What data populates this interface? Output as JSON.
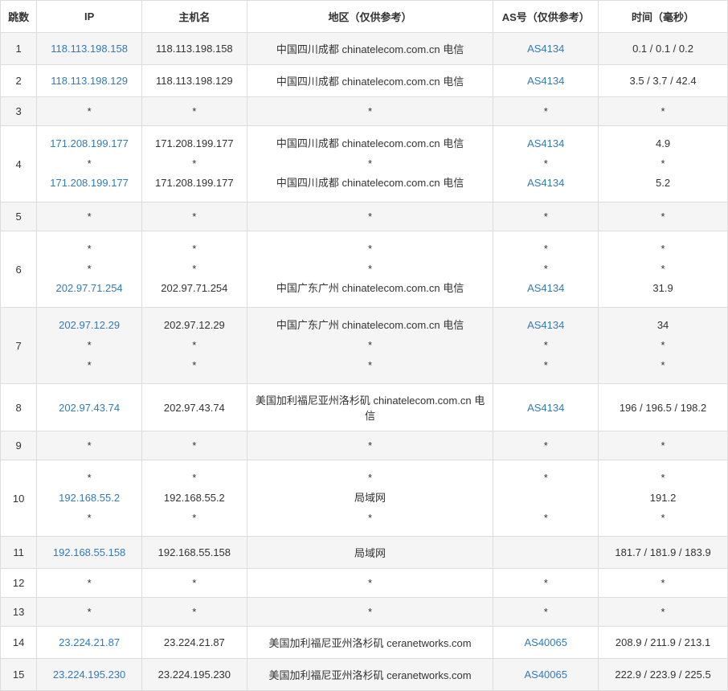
{
  "columns": {
    "hop": "跳数",
    "ip": "IP",
    "host": "主机名",
    "region": "地区（仅供参考）",
    "as": "AS号（仅供参考）",
    "time": "时间（毫秒）"
  },
  "rows": [
    {
      "hop": "1",
      "ip": [
        "118.113.198.158"
      ],
      "ip_link": [
        true
      ],
      "host": [
        "118.113.198.158"
      ],
      "region": [
        "中国四川成都 chinatelecom.com.cn 电信"
      ],
      "as": [
        "AS4134"
      ],
      "as_link": [
        true
      ],
      "time": [
        "0.1 / 0.1 / 0.2"
      ]
    },
    {
      "hop": "2",
      "ip": [
        "118.113.198.129"
      ],
      "ip_link": [
        true
      ],
      "host": [
        "118.113.198.129"
      ],
      "region": [
        "中国四川成都 chinatelecom.com.cn 电信"
      ],
      "as": [
        "AS4134"
      ],
      "as_link": [
        true
      ],
      "time": [
        "3.5 / 3.7 / 42.4"
      ]
    },
    {
      "hop": "3",
      "ip": [
        "*"
      ],
      "ip_link": [
        false
      ],
      "host": [
        "*"
      ],
      "region": [
        "*"
      ],
      "as": [
        "*"
      ],
      "as_link": [
        false
      ],
      "time": [
        "*"
      ]
    },
    {
      "hop": "4",
      "ip": [
        "171.208.199.177",
        "*",
        "171.208.199.177"
      ],
      "ip_link": [
        true,
        false,
        true
      ],
      "host": [
        "171.208.199.177",
        "*",
        "171.208.199.177"
      ],
      "region": [
        "中国四川成都 chinatelecom.com.cn 电信",
        "*",
        "中国四川成都 chinatelecom.com.cn 电信"
      ],
      "as": [
        "AS4134",
        "*",
        "AS4134"
      ],
      "as_link": [
        true,
        false,
        true
      ],
      "time": [
        "4.9",
        "*",
        "5.2"
      ]
    },
    {
      "hop": "5",
      "ip": [
        "*"
      ],
      "ip_link": [
        false
      ],
      "host": [
        "*"
      ],
      "region": [
        "*"
      ],
      "as": [
        "*"
      ],
      "as_link": [
        false
      ],
      "time": [
        "*"
      ]
    },
    {
      "hop": "6",
      "ip": [
        "*",
        "*",
        "202.97.71.254"
      ],
      "ip_link": [
        false,
        false,
        true
      ],
      "host": [
        "*",
        "*",
        "202.97.71.254"
      ],
      "region": [
        "*",
        "*",
        "中国广东广州 chinatelecom.com.cn 电信"
      ],
      "as": [
        "*",
        "*",
        "AS4134"
      ],
      "as_link": [
        false,
        false,
        true
      ],
      "time": [
        "*",
        "*",
        "31.9"
      ]
    },
    {
      "hop": "7",
      "ip": [
        "202.97.12.29",
        "*",
        "*"
      ],
      "ip_link": [
        true,
        false,
        false
      ],
      "host": [
        "202.97.12.29",
        "*",
        "*"
      ],
      "region": [
        "中国广东广州 chinatelecom.com.cn 电信",
        "*",
        "*"
      ],
      "as": [
        "AS4134",
        "*",
        "*"
      ],
      "as_link": [
        true,
        false,
        false
      ],
      "time": [
        "34",
        "*",
        "*"
      ]
    },
    {
      "hop": "8",
      "ip": [
        "202.97.43.74"
      ],
      "ip_link": [
        true
      ],
      "host": [
        "202.97.43.74"
      ],
      "region": [
        "美国加利福尼亚州洛杉矶 chinatelecom.com.cn 电信"
      ],
      "as": [
        "AS4134"
      ],
      "as_link": [
        true
      ],
      "time": [
        "196 / 196.5 / 198.2"
      ]
    },
    {
      "hop": "9",
      "ip": [
        "*"
      ],
      "ip_link": [
        false
      ],
      "host": [
        "*"
      ],
      "region": [
        "*"
      ],
      "as": [
        "*"
      ],
      "as_link": [
        false
      ],
      "time": [
        "*"
      ]
    },
    {
      "hop": "10",
      "ip": [
        "*",
        "192.168.55.2",
        "*"
      ],
      "ip_link": [
        false,
        true,
        false
      ],
      "host": [
        "*",
        "192.168.55.2",
        "*"
      ],
      "region": [
        "*",
        "局域网",
        "*"
      ],
      "as": [
        "*",
        "",
        "*"
      ],
      "as_link": [
        false,
        false,
        false
      ],
      "time": [
        "*",
        "191.2",
        "*"
      ]
    },
    {
      "hop": "11",
      "ip": [
        "192.168.55.158"
      ],
      "ip_link": [
        true
      ],
      "host": [
        "192.168.55.158"
      ],
      "region": [
        "局域网"
      ],
      "as": [
        ""
      ],
      "as_link": [
        false
      ],
      "time": [
        "181.7 / 181.9 / 183.9"
      ]
    },
    {
      "hop": "12",
      "ip": [
        "*"
      ],
      "ip_link": [
        false
      ],
      "host": [
        "*"
      ],
      "region": [
        "*"
      ],
      "as": [
        "*"
      ],
      "as_link": [
        false
      ],
      "time": [
        "*"
      ]
    },
    {
      "hop": "13",
      "ip": [
        "*"
      ],
      "ip_link": [
        false
      ],
      "host": [
        "*"
      ],
      "region": [
        "*"
      ],
      "as": [
        "*"
      ],
      "as_link": [
        false
      ],
      "time": [
        "*"
      ]
    },
    {
      "hop": "14",
      "ip": [
        "23.224.21.87"
      ],
      "ip_link": [
        true
      ],
      "host": [
        "23.224.21.87"
      ],
      "region": [
        "美国加利福尼亚州洛杉矶 ceranetworks.com"
      ],
      "as": [
        "AS40065"
      ],
      "as_link": [
        true
      ],
      "time": [
        "208.9 / 211.9 / 213.1"
      ]
    },
    {
      "hop": "15",
      "ip": [
        "23.224.195.230"
      ],
      "ip_link": [
        true
      ],
      "host": [
        "23.224.195.230"
      ],
      "region": [
        "美国加利福尼亚州洛杉矶 ceranetworks.com"
      ],
      "as": [
        "AS40065"
      ],
      "as_link": [
        true
      ],
      "time": [
        "222.9 / 223.9 / 225.5"
      ]
    }
  ],
  "colors": {
    "link": "#337ab7",
    "border": "#ddd",
    "odd_bg": "#f5f5f5",
    "even_bg": "#fff",
    "text": "#333"
  }
}
